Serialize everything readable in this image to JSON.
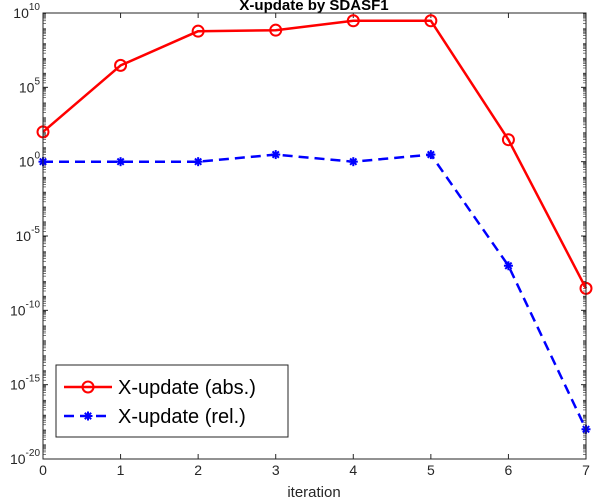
{
  "chart_data": {
    "type": "line",
    "title": "X-update by SDASF1",
    "xlabel": "iteration",
    "ylabel": "",
    "yscale": "log",
    "xlim": [
      0,
      7
    ],
    "ylim_exponents": [
      -20,
      10
    ],
    "x_ticks": [
      "0",
      "1",
      "2",
      "3",
      "4",
      "5",
      "6",
      "7"
    ],
    "y_ticks": [
      {
        "base": "10",
        "exp": "-20",
        "e": -20
      },
      {
        "base": "10",
        "exp": "-15",
        "e": -15
      },
      {
        "base": "10",
        "exp": "-10",
        "e": -10
      },
      {
        "base": "10",
        "exp": "-5",
        "e": -5
      },
      {
        "base": "10",
        "exp": "0",
        "e": 0
      },
      {
        "base": "10",
        "exp": "5",
        "e": 5
      },
      {
        "base": "10",
        "exp": "10",
        "e": 10
      }
    ],
    "x": [
      0,
      1,
      2,
      3,
      4,
      5,
      6,
      7
    ],
    "series": [
      {
        "name": "X-update (abs.)",
        "color": "#ff0000",
        "line": "solid",
        "marker": "circle",
        "values": [
          100.0,
          3000000.0,
          600000000.0,
          700000000.0,
          3000000000.0,
          3000000000.0,
          30.0,
          3e-09
        ]
      },
      {
        "name": "X-update (rel.)",
        "color": "#0000ff",
        "line": "dashed",
        "marker": "asterisk",
        "values": [
          1,
          1,
          1,
          3,
          1,
          3,
          1e-07,
          1e-18
        ]
      }
    ],
    "legend_position": "bottom-left",
    "grid": false
  }
}
